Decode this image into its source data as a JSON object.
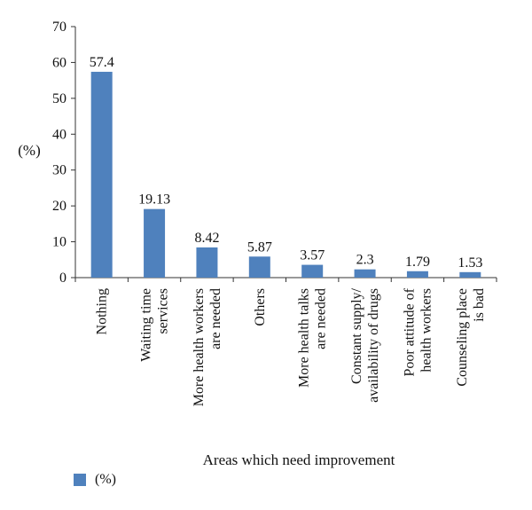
{
  "chart_data": {
    "type": "bar",
    "categories": [
      [
        "Nothing"
      ],
      [
        "Waiting time",
        "services"
      ],
      [
        "More health workers",
        "are needed"
      ],
      [
        "Others"
      ],
      [
        "More health talks",
        "are needed"
      ],
      [
        "Constant supply/",
        "availability of drugs"
      ],
      [
        "Poor attitude of",
        "health workers"
      ],
      [
        "Counseling place",
        "is bad"
      ]
    ],
    "series": [
      {
        "name": "(%)",
        "values": [
          57.4,
          19.13,
          8.42,
          5.87,
          3.57,
          2.3,
          1.79,
          1.53
        ]
      }
    ],
    "data_labels": [
      "57.4",
      "19.13",
      "8.42",
      "5.87",
      "3.57",
      "2.3",
      "1.79",
      "1.53"
    ],
    "yticks": [
      0,
      10,
      20,
      30,
      40,
      50,
      60,
      70
    ],
    "ylim": [
      0,
      70
    ],
    "xlabel": "Areas which need improvement",
    "ylabel": "(%)",
    "grid": false,
    "legend_position": "bottom-left",
    "bar_color": "#4f81bd"
  }
}
